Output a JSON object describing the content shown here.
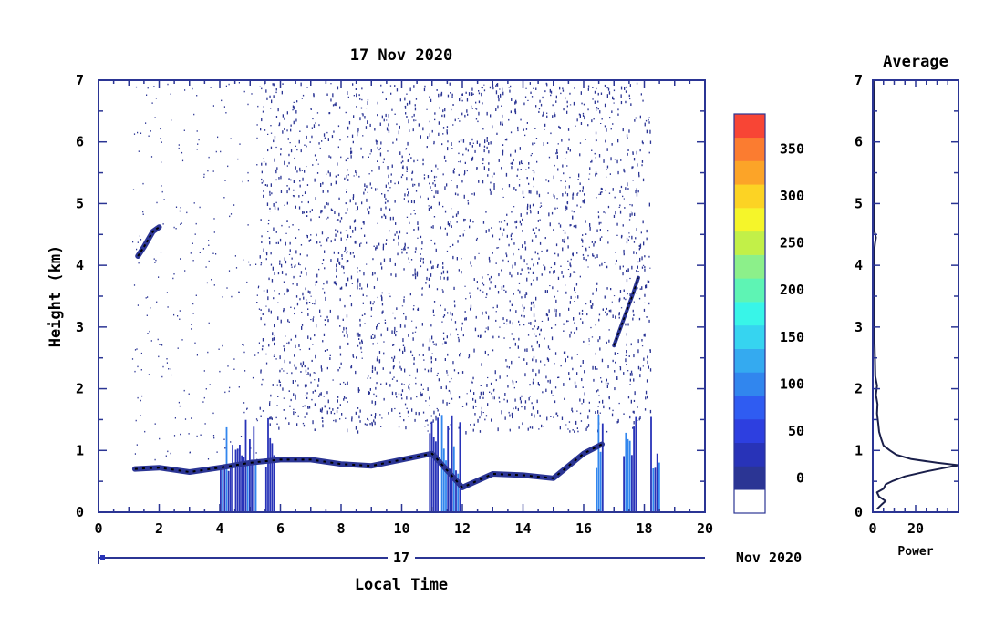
{
  "chart_data": [
    {
      "type": "heatmap",
      "title": "17 Nov 2020",
      "xlabel": "Local Time",
      "ylabel": "Height (km)",
      "xlim": [
        0,
        20
      ],
      "ylim": [
        0,
        7
      ],
      "x_ticks": [
        "0",
        "2",
        "4",
        "6",
        "8",
        "10",
        "12",
        "14",
        "16",
        "18",
        "20"
      ],
      "y_ticks": [
        "0",
        "1",
        "2",
        "3",
        "4",
        "5",
        "6",
        "7"
      ],
      "date_axis": {
        "day": "17",
        "month_year": "Nov 2020"
      },
      "colorbar": {
        "ticks": [
          "0",
          "50",
          "100",
          "150",
          "200",
          "250",
          "300",
          "350"
        ],
        "levels": [
          0,
          25,
          50,
          75,
          100,
          125,
          150,
          175,
          200,
          225,
          250,
          275,
          300,
          325,
          350,
          375
        ],
        "colors": [
          "#ffffff",
          "#2b3594",
          "#2833b8",
          "#2d3fe0",
          "#2f5cf2",
          "#3186ee",
          "#34aaf0",
          "#36d4f0",
          "#38f5e8",
          "#5ef4b4",
          "#8cf08a",
          "#c2f048",
          "#f5f52a",
          "#fcd324",
          "#fca428",
          "#fb7c30",
          "#f84535"
        ]
      },
      "background_color": "#2b3594",
      "features": {
        "noise_region_x": [
          5.3,
          18.2
        ],
        "boundary_layer": [
          [
            1.2,
            0.7
          ],
          [
            2,
            0.72
          ],
          [
            3,
            0.65
          ],
          [
            4,
            0.72
          ],
          [
            5,
            0.8
          ],
          [
            6,
            0.85
          ],
          [
            7,
            0.85
          ],
          [
            8,
            0.78
          ],
          [
            9,
            0.75
          ],
          [
            10,
            0.85
          ],
          [
            11,
            0.95
          ],
          [
            12,
            0.4
          ],
          [
            13,
            0.62
          ],
          [
            14,
            0.6
          ],
          [
            15,
            0.55
          ],
          [
            16,
            0.95
          ],
          [
            16.6,
            1.1
          ]
        ],
        "elevated_layer": [
          [
            1.3,
            4.15
          ],
          [
            1.5,
            4.3
          ],
          [
            1.8,
            4.55
          ],
          [
            2.0,
            4.62
          ]
        ],
        "rising_layer": [
          [
            17.0,
            2.7
          ],
          [
            17.3,
            3.1
          ],
          [
            17.6,
            3.5
          ],
          [
            17.8,
            3.8
          ]
        ],
        "precip_columns": [
          [
            4.0,
            4.4
          ],
          [
            4.5,
            5.2
          ],
          [
            5.5,
            5.8
          ],
          [
            10.9,
            11.2
          ],
          [
            11.3,
            11.9
          ],
          [
            16.4,
            16.6
          ],
          [
            17.3,
            17.7
          ],
          [
            18.2,
            18.5
          ]
        ]
      }
    },
    {
      "type": "line",
      "title": "Average",
      "xlabel": "Power",
      "ylabel": "",
      "xlim": [
        0,
        40
      ],
      "ylim": [
        0,
        7
      ],
      "x_ticks": [
        "0",
        "20"
      ],
      "y_ticks": [
        "0",
        "1",
        "2",
        "3",
        "4",
        "5",
        "6",
        "7"
      ],
      "series": [
        {
          "values": [
            [
              2,
              0.05
            ],
            [
              4,
              0.12
            ],
            [
              6,
              0.18
            ],
            [
              3,
              0.25
            ],
            [
              2,
              0.32
            ],
            [
              5,
              0.38
            ],
            [
              6,
              0.45
            ],
            [
              9,
              0.5
            ],
            [
              15,
              0.58
            ],
            [
              25,
              0.66
            ],
            [
              34,
              0.72
            ],
            [
              40,
              0.76
            ],
            [
              30,
              0.8
            ],
            [
              18,
              0.86
            ],
            [
              11,
              0.93
            ],
            [
              8,
              1.0
            ],
            [
              5,
              1.08
            ],
            [
              4,
              1.18
            ],
            [
              3,
              1.3
            ],
            [
              2.5,
              1.45
            ],
            [
              2,
              1.6
            ],
            [
              2.2,
              1.75
            ],
            [
              1.5,
              1.9
            ],
            [
              2,
              2.05
            ],
            [
              1.2,
              2.2
            ],
            [
              1,
              2.5
            ],
            [
              0.8,
              2.8
            ],
            [
              0.7,
              3.1
            ],
            [
              0.6,
              3.5
            ],
            [
              0.5,
              3.9
            ],
            [
              0.8,
              4.05
            ],
            [
              0.6,
              4.2
            ],
            [
              1,
              4.35
            ],
            [
              1.5,
              4.45
            ],
            [
              0.8,
              4.55
            ],
            [
              0.6,
              4.7
            ],
            [
              0.5,
              5.0
            ],
            [
              0.5,
              5.5
            ],
            [
              0.6,
              6.0
            ],
            [
              0.8,
              6.3
            ],
            [
              0.5,
              6.5
            ],
            [
              0.4,
              7.0
            ]
          ]
        }
      ]
    }
  ]
}
